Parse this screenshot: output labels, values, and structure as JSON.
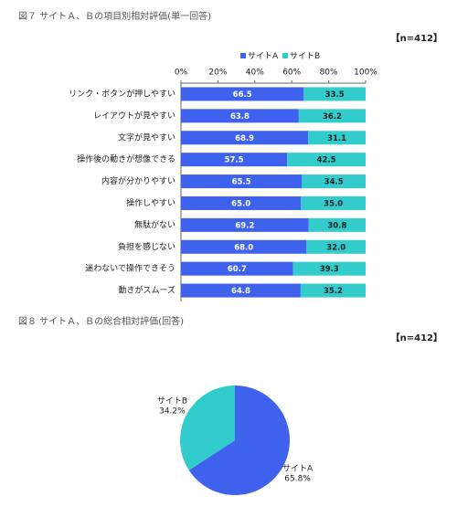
{
  "chart_data": [
    {
      "type": "stacked-bar-horizontal",
      "title": "図７ サイトＡ、Ｂの項目別相対評価(単一回答)",
      "annotation": "【n=412】",
      "categories": [
        "リンク・ボタンが押しやすい",
        "レイアウトが見やすい",
        "文字が見やすい",
        "操作後の動きが想像できる",
        "内容が分かりやすい",
        "操作しやすい",
        "無駄がない",
        "負担を感じない",
        "迷わないで操作できそう",
        "動きがスムーズ"
      ],
      "series": [
        {
          "name": "サイトA",
          "color": "#3f62ee",
          "values": [
            66.5,
            63.8,
            68.9,
            57.5,
            65.5,
            65.0,
            69.2,
            68.0,
            60.7,
            64.8
          ],
          "value_labels": [
            "66.5",
            "63.8",
            "68.9",
            "57.5",
            "65.5",
            "65.0",
            "69.2",
            "68.0",
            "60.7",
            "64.8"
          ]
        },
        {
          "name": "サイトB",
          "color": "#33cccc",
          "values": [
            33.5,
            36.2,
            31.1,
            42.5,
            34.5,
            35.0,
            30.8,
            32.0,
            39.3,
            35.2
          ],
          "value_labels": [
            "33.5",
            "36.2",
            "31.1",
            "42.5",
            "34.5",
            "35.0",
            "30.8",
            "32.0",
            "39.3",
            "35.2"
          ]
        }
      ],
      "xlim": [
        0,
        100
      ],
      "xticks": [
        {
          "value": 0,
          "label": "0%"
        },
        {
          "value": 20,
          "label": "20%"
        },
        {
          "value": 40,
          "label": "40%"
        },
        {
          "value": 60,
          "label": "60%"
        },
        {
          "value": 80,
          "label": "80%"
        },
        {
          "value": 100,
          "label": "100%"
        }
      ],
      "legend": "top"
    },
    {
      "type": "pie",
      "title": "図８ サイトＡ、Ｂの総合相対評価(回答)",
      "annotation": "【n=412】",
      "categories": [
        "サイトA",
        "サイトB"
      ],
      "values": [
        65.8,
        34.2
      ],
      "value_labels": [
        "65.8%",
        "34.2%"
      ],
      "colors": [
        "#3f62ee",
        "#33cccc"
      ]
    }
  ]
}
